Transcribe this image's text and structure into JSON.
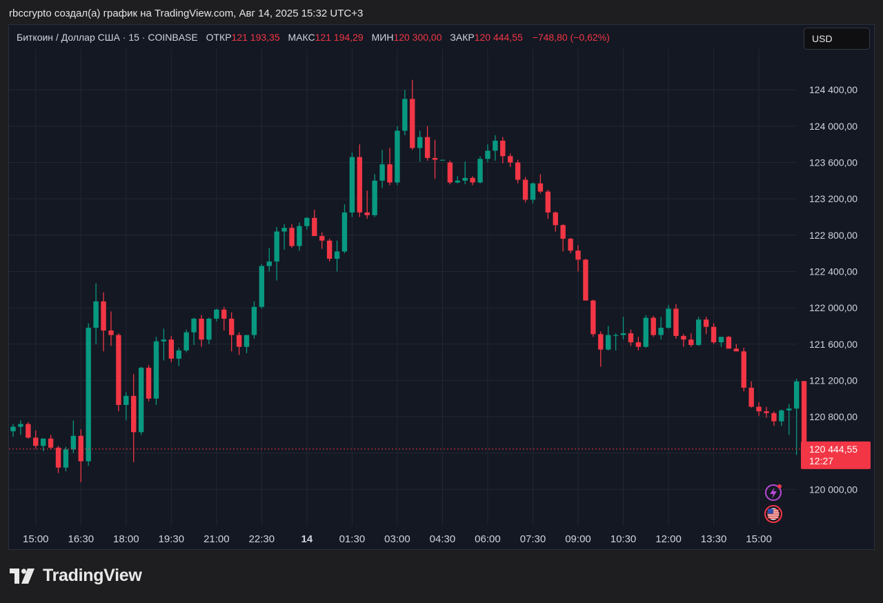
{
  "header": {
    "caption": "rbccrypto создал(а) график на TradingView.com, Авг 14, 2025 15:32 UTC+3"
  },
  "legend": {
    "symbol": "Биткоин / Доллар США · 15 · COINBASE",
    "open_label": "ОТКР",
    "open_value": "121 193,35",
    "high_label": "МАКС",
    "high_value": "121 194,29",
    "low_label": "МИН",
    "low_value": "120 300,00",
    "close_label": "ЗАКР",
    "close_value": "120 444,55",
    "change": "−748,80 (−0,62%)"
  },
  "currency_button": "USD",
  "price_tag": {
    "price": "120 444,55",
    "countdown": "12:27"
  },
  "brand": {
    "name": "TradingView"
  },
  "colors": {
    "up": "#089981",
    "down": "#f23645",
    "background": "#141823",
    "grid": "#232733",
    "axis_text": "#d1d4dc"
  },
  "icons": [
    "lightning-icon",
    "us-flag-icon",
    "tradingview-logo-icon"
  ],
  "chart_data": {
    "type": "candlestick",
    "interval": "15",
    "ylim": [
      119600,
      124850
    ],
    "y_ticks": [
      {
        "value": 120000,
        "label": "120 000,00"
      },
      {
        "value": 120400,
        "label": "120 400,00"
      },
      {
        "value": 120800,
        "label": "120 800,00"
      },
      {
        "value": 121200,
        "label": "121 200,00"
      },
      {
        "value": 121600,
        "label": "121 600,00"
      },
      {
        "value": 122000,
        "label": "122 000,00"
      },
      {
        "value": 122400,
        "label": "122 400,00"
      },
      {
        "value": 122800,
        "label": "122 800,00"
      },
      {
        "value": 123200,
        "label": "123 200,00"
      },
      {
        "value": 123600,
        "label": "123 600,00"
      },
      {
        "value": 124000,
        "label": "124 000,00"
      },
      {
        "value": 124400,
        "label": "124 400,00"
      }
    ],
    "x_ticks": [
      {
        "index": 3,
        "label": "15:00",
        "bold": false
      },
      {
        "index": 9,
        "label": "16:30",
        "bold": false
      },
      {
        "index": 15,
        "label": "18:00",
        "bold": false
      },
      {
        "index": 21,
        "label": "19:30",
        "bold": false
      },
      {
        "index": 27,
        "label": "21:00",
        "bold": false
      },
      {
        "index": 33,
        "label": "22:30",
        "bold": false
      },
      {
        "index": 39,
        "label": "14",
        "bold": true
      },
      {
        "index": 45,
        "label": "01:30",
        "bold": false
      },
      {
        "index": 51,
        "label": "03:00",
        "bold": false
      },
      {
        "index": 57,
        "label": "04:30",
        "bold": false
      },
      {
        "index": 63,
        "label": "06:00",
        "bold": false
      },
      {
        "index": 69,
        "label": "07:30",
        "bold": false
      },
      {
        "index": 75,
        "label": "09:00",
        "bold": false
      },
      {
        "index": 81,
        "label": "10:30",
        "bold": false
      },
      {
        "index": 87,
        "label": "12:00",
        "bold": false
      },
      {
        "index": 93,
        "label": "13:30",
        "bold": false
      },
      {
        "index": 99,
        "label": "15:00",
        "bold": false
      }
    ],
    "last_price": 120444.55,
    "candles": [
      [
        120640,
        120720,
        120580,
        120690
      ],
      [
        120690,
        120760,
        120600,
        120720
      ],
      [
        120720,
        120740,
        120560,
        120570
      ],
      [
        120570,
        120650,
        120450,
        120480
      ],
      [
        120480,
        120560,
        120420,
        120560
      ],
      [
        120560,
        120600,
        120440,
        120460
      ],
      [
        120460,
        120480,
        120180,
        120240
      ],
      [
        120240,
        120470,
        120200,
        120440
      ],
      [
        120440,
        120760,
        120400,
        120590
      ],
      [
        120590,
        120660,
        120080,
        120310
      ],
      [
        120310,
        121830,
        120260,
        121780
      ],
      [
        121780,
        122270,
        121600,
        122070
      ],
      [
        122070,
        122170,
        121520,
        121750
      ],
      [
        121750,
        121960,
        121580,
        121700
      ],
      [
        121700,
        121720,
        120860,
        120930
      ],
      [
        120930,
        121070,
        120760,
        121030
      ],
      [
        121030,
        121270,
        120300,
        120630
      ],
      [
        120630,
        121350,
        120600,
        121340
      ],
      [
        121340,
        121370,
        120970,
        121000
      ],
      [
        121000,
        121680,
        120930,
        121630
      ],
      [
        121630,
        121770,
        121420,
        121650
      ],
      [
        121650,
        121690,
        121400,
        121440
      ],
      [
        121440,
        121560,
        121360,
        121530
      ],
      [
        121530,
        121760,
        121510,
        121730
      ],
      [
        121730,
        121890,
        121590,
        121880
      ],
      [
        121880,
        121920,
        121570,
        121650
      ],
      [
        121650,
        121890,
        121600,
        121880
      ],
      [
        121880,
        121990,
        121850,
        121980
      ],
      [
        121980,
        122010,
        121750,
        121880
      ],
      [
        121880,
        121950,
        121520,
        121700
      ],
      [
        121700,
        121730,
        121480,
        121570
      ],
      [
        121570,
        121660,
        121500,
        121700
      ],
      [
        121700,
        122070,
        121660,
        122010
      ],
      [
        122010,
        122480,
        121990,
        122460
      ],
      [
        122460,
        122660,
        122400,
        122510
      ],
      [
        122510,
        122890,
        122300,
        122840
      ],
      [
        122840,
        122920,
        122640,
        122880
      ],
      [
        122880,
        122920,
        122660,
        122680
      ],
      [
        122680,
        122940,
        122630,
        122900
      ],
      [
        122900,
        123000,
        122860,
        122990
      ],
      [
        122990,
        123080,
        122800,
        122790
      ],
      [
        122790,
        122830,
        122650,
        122740
      ],
      [
        122740,
        122760,
        122510,
        122540
      ],
      [
        122540,
        122740,
        122400,
        122620
      ],
      [
        122620,
        123140,
        122600,
        123050
      ],
      [
        123050,
        123710,
        123000,
        123660
      ],
      [
        123660,
        123800,
        123000,
        123050
      ],
      [
        123050,
        123290,
        122980,
        123020
      ],
      [
        123020,
        123470,
        123000,
        123400
      ],
      [
        123400,
        123740,
        123320,
        123580
      ],
      [
        123580,
        123760,
        123350,
        123380
      ],
      [
        123380,
        124000,
        123350,
        123950
      ],
      [
        123950,
        124400,
        123900,
        124300
      ],
      [
        124300,
        124510,
        123740,
        123760
      ],
      [
        123760,
        123950,
        123610,
        123880
      ],
      [
        123880,
        124000,
        123620,
        123650
      ],
      [
        123650,
        123850,
        123420,
        123630
      ],
      [
        123630,
        123630,
        123630,
        123630
      ],
      [
        123600,
        123620,
        123360,
        123380
      ],
      [
        123380,
        123450,
        123370,
        123400
      ],
      [
        123400,
        123610,
        123360,
        123430
      ],
      [
        123430,
        123450,
        123350,
        123380
      ],
      [
        123380,
        123670,
        123370,
        123640
      ],
      [
        123640,
        123800,
        123600,
        123730
      ],
      [
        123730,
        123900,
        123620,
        123840
      ],
      [
        123840,
        123880,
        123590,
        123670
      ],
      [
        123670,
        123700,
        123550,
        123600
      ],
      [
        123600,
        123630,
        123370,
        123410
      ],
      [
        123410,
        123440,
        123160,
        123190
      ],
      [
        123190,
        123380,
        123150,
        123370
      ],
      [
        123370,
        123470,
        123260,
        123280
      ],
      [
        123280,
        123300,
        122980,
        123050
      ],
      [
        123050,
        123060,
        122840,
        122910
      ],
      [
        122910,
        122920,
        122620,
        122760
      ],
      [
        122760,
        122770,
        122600,
        122630
      ],
      [
        122630,
        122690,
        122400,
        122530
      ],
      [
        122530,
        122540,
        122080,
        122080
      ],
      [
        122080,
        122090,
        121680,
        121710
      ],
      [
        121710,
        121740,
        121350,
        121540
      ],
      [
        121540,
        121800,
        121530,
        121700
      ],
      [
        121700,
        121720,
        121530,
        121700
      ],
      [
        121700,
        121900,
        121650,
        121720
      ],
      [
        121720,
        121760,
        121580,
        121620
      ],
      [
        121620,
        121680,
        121530,
        121570
      ],
      [
        121570,
        121920,
        121560,
        121890
      ],
      [
        121890,
        121910,
        121680,
        121700
      ],
      [
        121700,
        121900,
        121650,
        121780
      ],
      [
        121780,
        122030,
        121770,
        121990
      ],
      [
        121990,
        122040,
        121660,
        121690
      ],
      [
        121690,
        121710,
        121570,
        121650
      ],
      [
        121650,
        121720,
        121570,
        121590
      ],
      [
        121590,
        121900,
        121580,
        121870
      ],
      [
        121870,
        121900,
        121710,
        121790
      ],
      [
        121790,
        121830,
        121600,
        121620
      ],
      [
        121620,
        121680,
        121570,
        121680
      ],
      [
        121680,
        121690,
        121560,
        121550
      ],
      [
        121550,
        121600,
        121530,
        121520
      ],
      [
        121520,
        121560,
        121080,
        121120
      ],
      [
        121120,
        121190,
        120900,
        120910
      ],
      [
        120910,
        120960,
        120810,
        120860
      ],
      [
        120860,
        120910,
        120790,
        120840
      ],
      [
        120840,
        120860,
        120700,
        120750
      ],
      [
        120750,
        120880,
        120700,
        120870
      ],
      [
        120870,
        120940,
        120600,
        120890
      ],
      [
        120890,
        121220,
        120380,
        121190
      ],
      [
        121193,
        121194,
        120300,
        120445
      ]
    ]
  }
}
